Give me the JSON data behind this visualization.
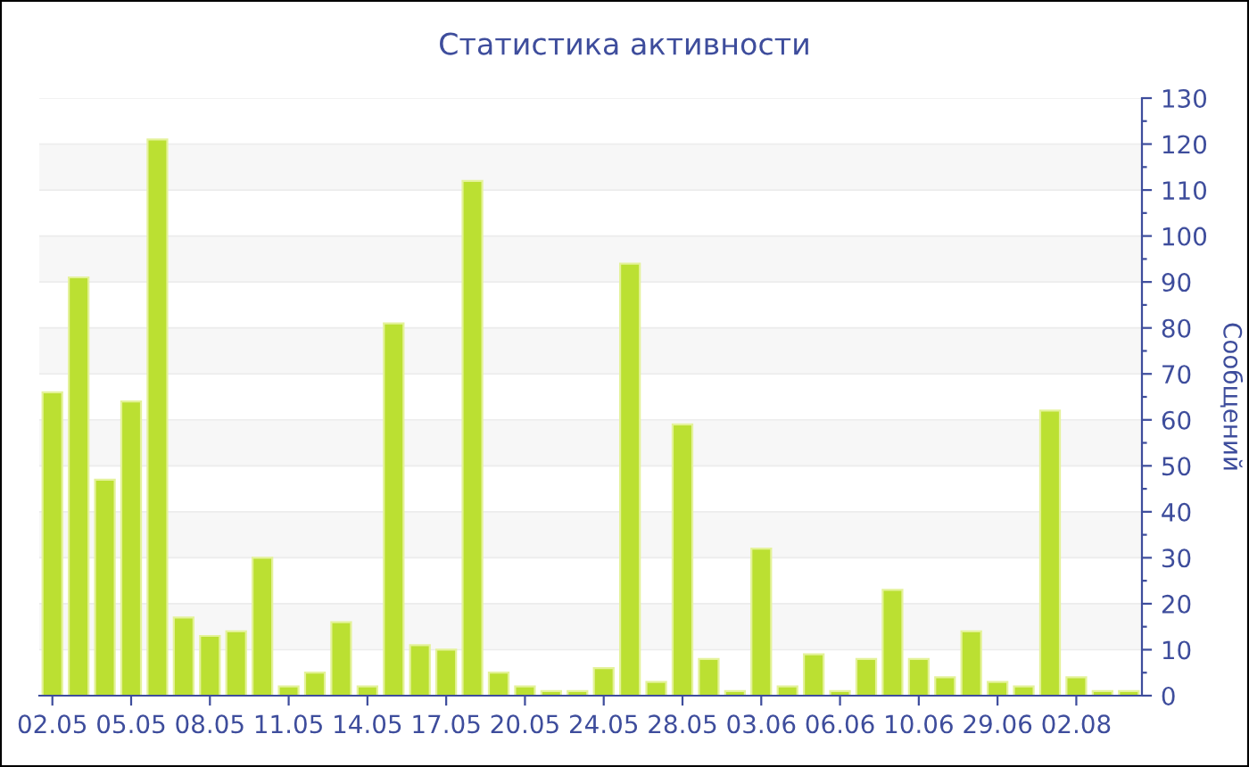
{
  "chart_data": {
    "type": "bar",
    "title": "Статистика активности",
    "ylabel": "Сообщений",
    "categories": [
      "02.05",
      null,
      null,
      "05.05",
      null,
      null,
      "08.05",
      null,
      null,
      "11.05",
      null,
      null,
      "14.05",
      null,
      null,
      "17.05",
      null,
      null,
      "20.05",
      null,
      null,
      "24.05",
      null,
      null,
      "28.05",
      null,
      null,
      "03.06",
      null,
      null,
      "06.06",
      null,
      null,
      "10.06",
      null,
      null,
      "29.06",
      null,
      null,
      "02.08",
      null,
      null
    ],
    "values": [
      66,
      91,
      47,
      64,
      121,
      17,
      13,
      14,
      30,
      2,
      5,
      16,
      2,
      81,
      11,
      10,
      112,
      5,
      2,
      1,
      1,
      6,
      94,
      3,
      59,
      8,
      1,
      32,
      2,
      9,
      1,
      8,
      23,
      8,
      4,
      14,
      3,
      2,
      62,
      4,
      1,
      1
    ],
    "color": "#bbe032",
    "ylim": [
      0,
      130
    ],
    "yticks": [
      0,
      {
        "value": 5,
        "label": null
      },
      10,
      {
        "value": 15,
        "label": null
      },
      20,
      {
        "value": 25,
        "label": null
      },
      30,
      {
        "value": 35,
        "label": null
      },
      40,
      {
        "value": 45,
        "label": null
      },
      50,
      {
        "value": 55,
        "label": null
      },
      60,
      {
        "value": 65,
        "label": null
      },
      70,
      {
        "value": 75,
        "label": null
      },
      80,
      {
        "value": 85,
        "label": null
      },
      90,
      {
        "value": 95,
        "label": null
      },
      100,
      {
        "value": 105,
        "label": null
      },
      110,
      {
        "value": 115,
        "label": null
      },
      120,
      {
        "value": 125,
        "label": null
      },
      130
    ],
    "grid": "y"
  }
}
